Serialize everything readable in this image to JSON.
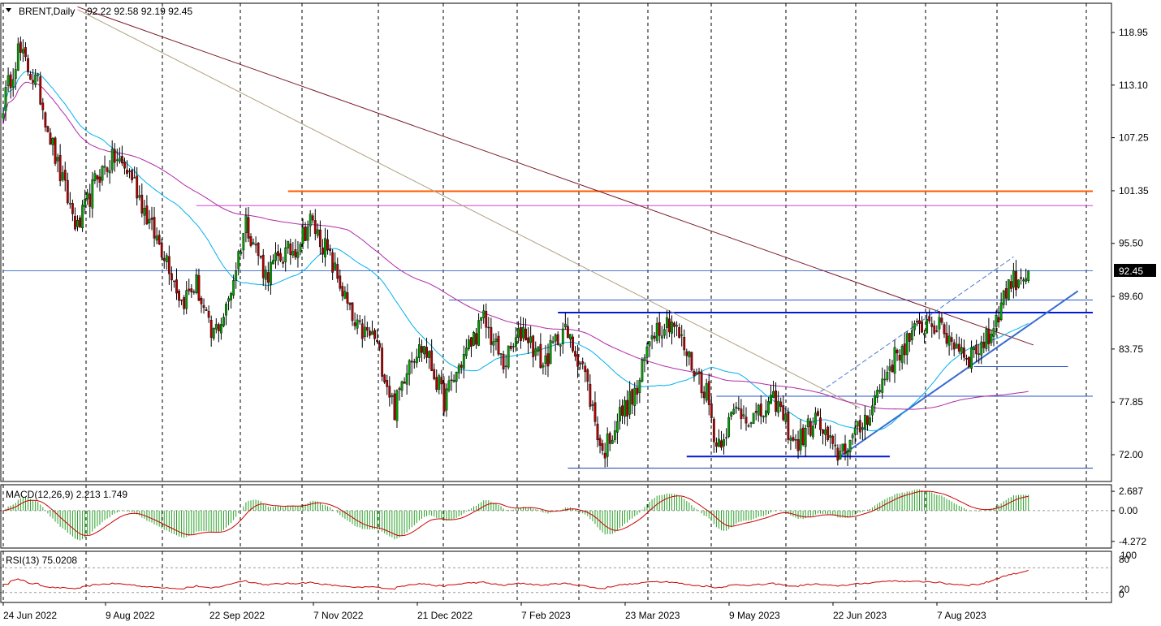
{
  "chart_data": {
    "type": "candlestick",
    "symbol": "BRENT",
    "timeframe": "Daily",
    "header": {
      "symbol_timeframe": "BRENT,Daily",
      "ohlc_text": "92.22 92.58 92.19 92.45"
    },
    "last_price_label": "92.45",
    "last_price": 92.45,
    "price_axis": {
      "ticks": [
        {
          "label": "118.95",
          "value": 118.95
        },
        {
          "label": "113.10",
          "value": 113.1
        },
        {
          "label": "107.25",
          "value": 107.25
        },
        {
          "label": "101.35",
          "value": 101.35
        },
        {
          "label": "95.50",
          "value": 95.5
        },
        {
          "label": "89.60",
          "value": 89.6
        },
        {
          "label": "83.75",
          "value": 83.75
        },
        {
          "label": "77.85",
          "value": 77.85
        },
        {
          "label": "72.00",
          "value": 72.0
        }
      ],
      "ylim": [
        69.8,
        121.8
      ]
    },
    "x_axis_labels": [
      "24 Jun 2022",
      "9 Aug 2022",
      "22 Sep 2022",
      "7 Nov 2022",
      "21 Dec 2022",
      "7 Feb 2023",
      "23 Mar 2023",
      "9 May 2023",
      "22 Jun 2023",
      "7 Aug 2023"
    ],
    "price_anchors": [
      {
        "x": 0,
        "price": 111
      },
      {
        "x": 6,
        "price": 117
      },
      {
        "x": 14,
        "price": 113
      },
      {
        "x": 22,
        "price": 104
      },
      {
        "x": 30,
        "price": 97
      },
      {
        "x": 38,
        "price": 103
      },
      {
        "x": 45,
        "price": 105
      },
      {
        "x": 52,
        "price": 103
      },
      {
        "x": 60,
        "price": 97
      },
      {
        "x": 66,
        "price": 94
      },
      {
        "x": 72,
        "price": 89
      },
      {
        "x": 78,
        "price": 91
      },
      {
        "x": 84,
        "price": 85
      },
      {
        "x": 90,
        "price": 88
      },
      {
        "x": 98,
        "price": 98
      },
      {
        "x": 106,
        "price": 92
      },
      {
        "x": 112,
        "price": 94
      },
      {
        "x": 118,
        "price": 95
      },
      {
        "x": 124,
        "price": 98
      },
      {
        "x": 130,
        "price": 95
      },
      {
        "x": 136,
        "price": 91
      },
      {
        "x": 142,
        "price": 86
      },
      {
        "x": 150,
        "price": 85
      },
      {
        "x": 158,
        "price": 77
      },
      {
        "x": 164,
        "price": 83
      },
      {
        "x": 170,
        "price": 84
      },
      {
        "x": 178,
        "price": 78
      },
      {
        "x": 186,
        "price": 83
      },
      {
        "x": 194,
        "price": 87
      },
      {
        "x": 202,
        "price": 82
      },
      {
        "x": 210,
        "price": 86
      },
      {
        "x": 218,
        "price": 82
      },
      {
        "x": 226,
        "price": 86
      },
      {
        "x": 234,
        "price": 82
      },
      {
        "x": 242,
        "price": 72
      },
      {
        "x": 248,
        "price": 76
      },
      {
        "x": 256,
        "price": 79
      },
      {
        "x": 262,
        "price": 86
      },
      {
        "x": 270,
        "price": 87
      },
      {
        "x": 278,
        "price": 82
      },
      {
        "x": 284,
        "price": 79
      },
      {
        "x": 288,
        "price": 73
      },
      {
        "x": 296,
        "price": 77
      },
      {
        "x": 304,
        "price": 76
      },
      {
        "x": 312,
        "price": 78
      },
      {
        "x": 320,
        "price": 73
      },
      {
        "x": 328,
        "price": 76
      },
      {
        "x": 336,
        "price": 72
      },
      {
        "x": 344,
        "price": 74
      },
      {
        "x": 350,
        "price": 77
      },
      {
        "x": 358,
        "price": 82
      },
      {
        "x": 366,
        "price": 85
      },
      {
        "x": 374,
        "price": 87
      },
      {
        "x": 382,
        "price": 85
      },
      {
        "x": 390,
        "price": 83
      },
      {
        "x": 398,
        "price": 85
      },
      {
        "x": 406,
        "price": 91
      },
      {
        "x": 414,
        "price": 92.45
      }
    ],
    "moving_averages": [
      {
        "name": "MA-fast",
        "color": "#00b0ee"
      },
      {
        "name": "MA-slow",
        "color": "#b02aa8"
      }
    ],
    "horizontal_levels": [
      {
        "price": 101.3,
        "color": "#ff5a00",
        "from_x": 115,
        "to_x": 440,
        "width": 2
      },
      {
        "price": 99.7,
        "color": "#d940d9",
        "from_x": 78,
        "to_x": 440,
        "width": 1
      },
      {
        "price": 92.45,
        "color": "#4a7ad0",
        "from_x": 0,
        "to_x": 440,
        "width": 1
      },
      {
        "price": 89.2,
        "color": "#2a54cc",
        "from_x": 180,
        "to_x": 440,
        "width": 1
      },
      {
        "price": 87.8,
        "color": "#0018d8",
        "from_x": 224,
        "to_x": 440,
        "width": 2
      },
      {
        "price": 81.8,
        "color": "#2a54cc",
        "from_x": 392,
        "to_x": 430,
        "width": 1
      },
      {
        "price": 78.5,
        "color": "#2a54cc",
        "from_x": 288,
        "to_x": 440,
        "width": 1
      },
      {
        "price": 71.8,
        "color": "#0018d8",
        "from_x": 276,
        "to_x": 358,
        "width": 2
      },
      {
        "price": 70.5,
        "color": "#1a3bb0",
        "from_x": 228,
        "to_x": 440,
        "width": 1
      }
    ],
    "trendlines": [
      {
        "from": {
          "x": 30,
          "price": 121.8
        },
        "to": {
          "x": 416,
          "price": 84.2
        },
        "color": "#7a1a28",
        "width": 1,
        "dash": ""
      },
      {
        "from": {
          "x": 30,
          "price": 121.5
        },
        "to": {
          "x": 346,
          "price": 77.2
        },
        "color": "#b0a080",
        "width": 1,
        "dash": ""
      },
      {
        "from": {
          "x": 338,
          "price": 71.8
        },
        "to": {
          "x": 434,
          "price": 90.2
        },
        "color": "#3a6cd0",
        "width": 2,
        "dash": ""
      },
      {
        "from": {
          "x": 330,
          "price": 79.0
        },
        "to": {
          "x": 408,
          "price": 94.0
        },
        "color": "#4a7ad0",
        "width": 1,
        "dash": "6,3"
      }
    ],
    "macd": {
      "label": "MACD(12,26,9) 2.213 1.749",
      "ticks": [
        {
          "label": "2.687",
          "value": 2.687
        },
        {
          "label": "0.00",
          "value": 0
        },
        {
          "label": "-4.272",
          "value": -4.272
        }
      ],
      "ylim": [
        -5.2,
        3.6
      ],
      "histogram_color": "#2aa02a",
      "signal_color": "#cc0000"
    },
    "rsi": {
      "label": "RSI(13) 75.0208",
      "ticks": [
        {
          "label": "100",
          "value": 100
        },
        {
          "label": "80",
          "value": 80
        },
        {
          "label": "20",
          "value": 20
        },
        {
          "label": "0",
          "value": 0
        }
      ],
      "line_color": "#cc0000"
    }
  }
}
